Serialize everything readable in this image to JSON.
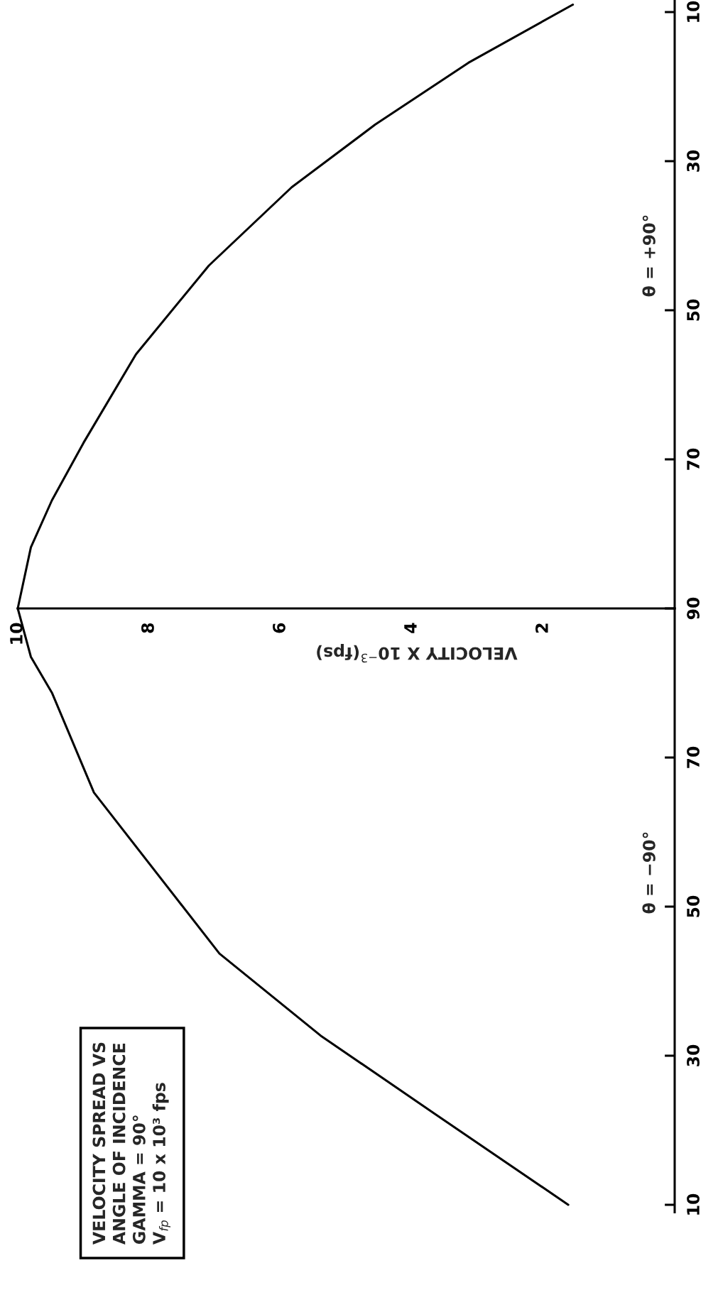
{
  "chart_data": [
    {
      "type": "line",
      "xlabel": "VELOCITY X 10$^{−3}$(fps)",
      "annotations": [
        "θ = +90°"
      ],
      "xlim": [
        10,
        0
      ],
      "xticks": [
        10,
        8,
        6,
        4,
        2
      ],
      "ylim": [
        90,
        8.5
      ],
      "yticks": [
        10,
        30,
        50,
        70,
        90
      ],
      "series": [
        {
          "color": "#000000",
          "x": [
            10,
            9.8,
            9.48,
            9.0,
            8.2,
            7.09,
            5.83,
            4.56,
            3.14,
            1.55
          ],
          "values": [
            90,
            81.8,
            75.5,
            67.8,
            55.9,
            44.0,
            33.5,
            25.1,
            16.8,
            9
          ]
        }
      ],
      "grid": false,
      "line_style": "solid"
    },
    {
      "type": "line",
      "annotations": [
        "VELOCITY SPREAD VS\nANGLE OF INCIDENCE\nGAMMA = 90°\nV$_{fp}$ = 10 x 10³ fps",
        "θ = −90°"
      ],
      "xlim": [
        10,
        0
      ],
      "xticks": [
        10,
        8,
        6,
        4,
        2
      ],
      "ylim": [
        9,
        90
      ],
      "yticks": [
        10,
        30,
        50,
        70
      ],
      "tick_labels": "y",
      "series": [
        {
          "color": "#000000",
          "x": [
            10,
            9.8,
            9.48,
            8.84,
            6.93,
            5.39,
            3.65,
            1.62
          ],
          "values": [
            90,
            83.5,
            78.7,
            65.3,
            43.7,
            32.7,
            22.2,
            10
          ]
        }
      ],
      "grid": false,
      "line_style": "solid"
    }
  ]
}
